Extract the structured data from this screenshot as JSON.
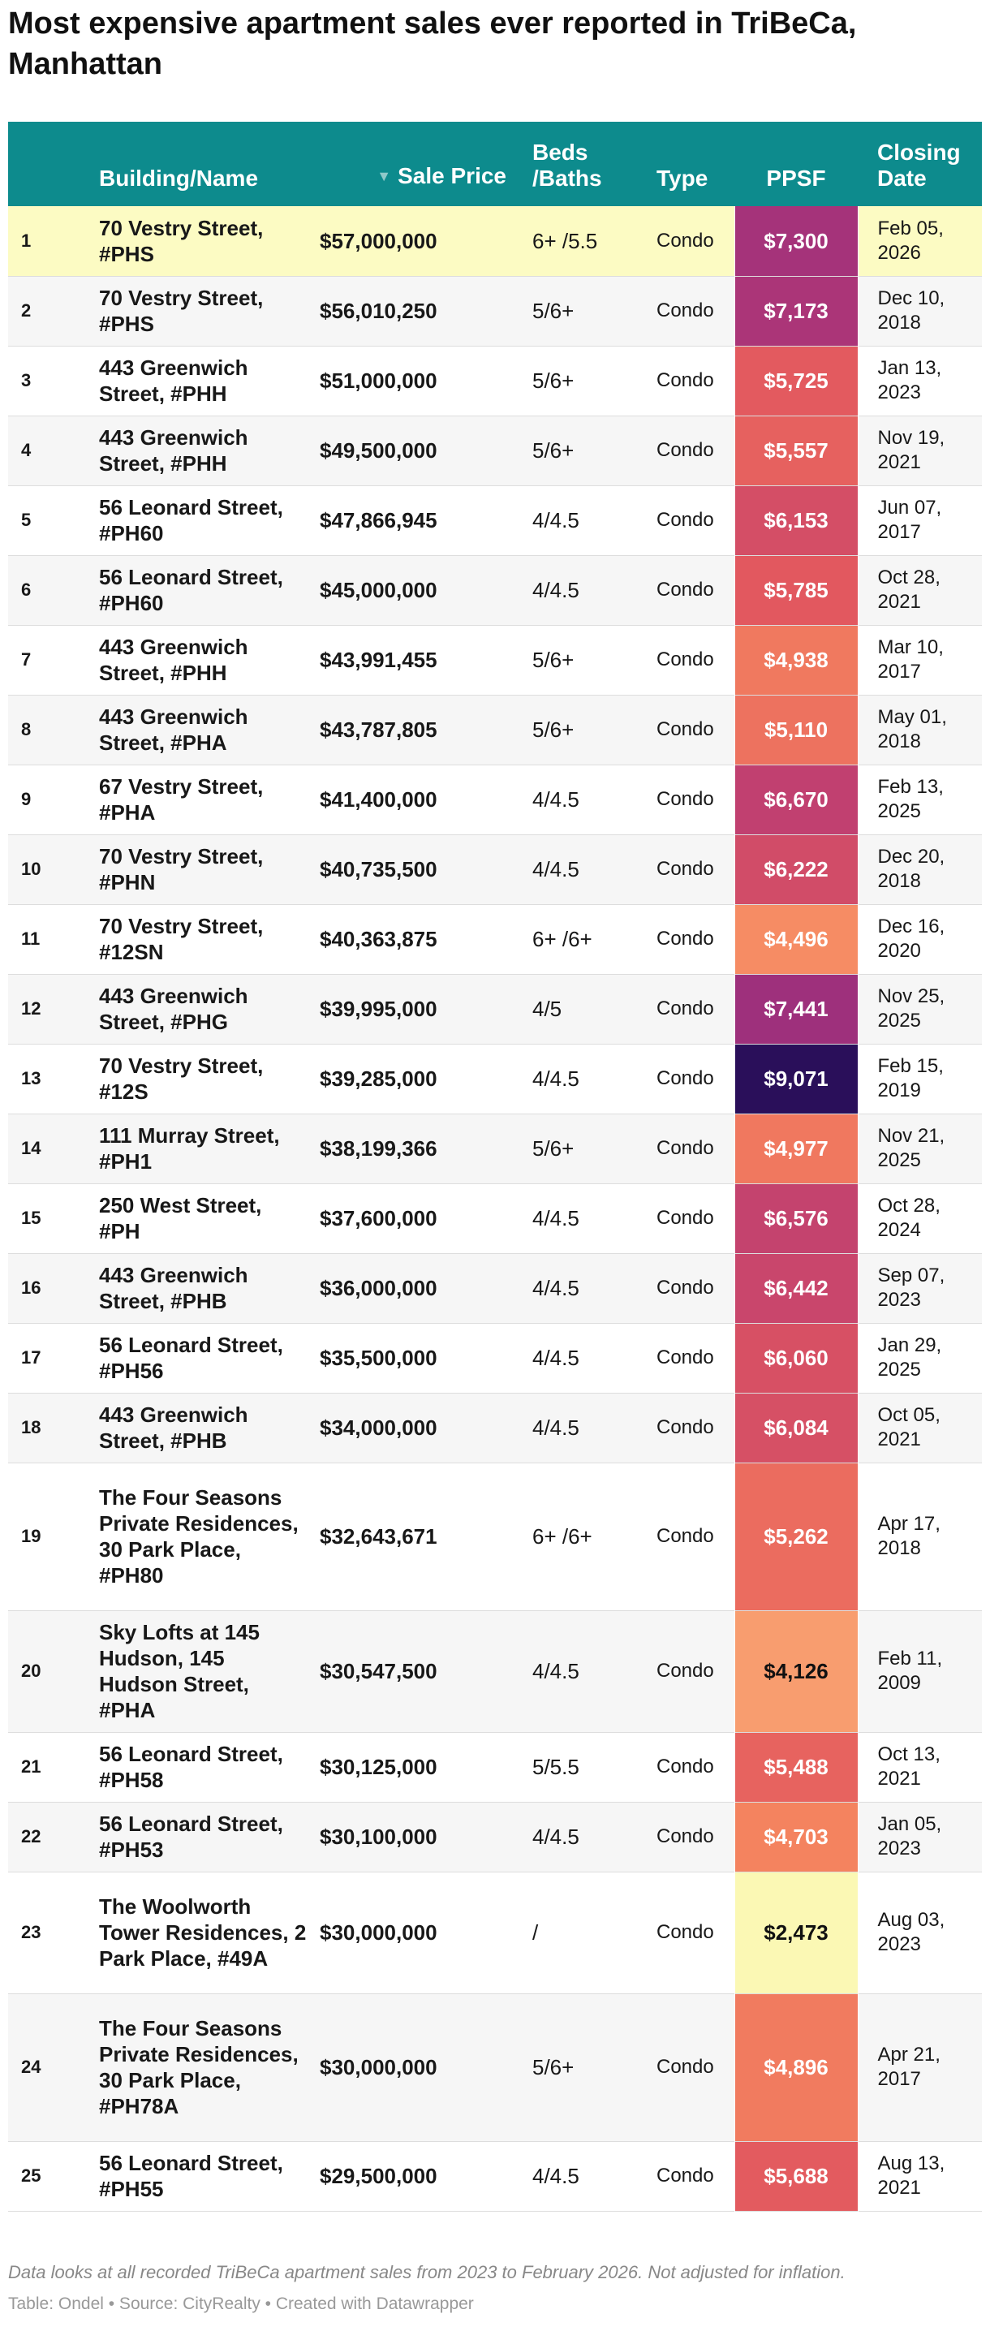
{
  "title": "Most expensive apartment sales ever reported in TriBeCa, Manhattan",
  "chart_data": {
    "type": "table",
    "columns": [
      "",
      "Building/Name",
      "Sale Price",
      "Beds /Baths",
      "Type",
      "PPSF",
      "Closing Date"
    ],
    "sorted_column": "Sale Price",
    "sort_direction": "descending",
    "ppsf_color_scale": {
      "min": 2473,
      "max": 9071
    },
    "rows": [
      {
        "rank": "1",
        "name": "70 Vestry Street, #PHS",
        "price": "$57,000,000",
        "beds": "6+ /5.5",
        "type": "Condo",
        "ppsf": 7300,
        "ppsf_label": "$7,300",
        "date": "Feb 05, 2026",
        "highlight": true
      },
      {
        "rank": "2",
        "name": "70 Vestry Street, #PHS",
        "price": "$56,010,250",
        "beds": "5/6+",
        "type": "Condo",
        "ppsf": 7173,
        "ppsf_label": "$7,173",
        "date": "Dec 10, 2018"
      },
      {
        "rank": "3",
        "name": "443 Greenwich Street, #PHH",
        "price": "$51,000,000",
        "beds": "5/6+",
        "type": "Condo",
        "ppsf": 5725,
        "ppsf_label": "$5,725",
        "date": "Jan 13, 2023"
      },
      {
        "rank": "4",
        "name": "443 Greenwich Street, #PHH",
        "price": "$49,500,000",
        "beds": "5/6+",
        "type": "Condo",
        "ppsf": 5557,
        "ppsf_label": "$5,557",
        "date": "Nov 19, 2021"
      },
      {
        "rank": "5",
        "name": "56 Leonard Street, #PH60",
        "price": "$47,866,945",
        "beds": "4/4.5",
        "type": "Condo",
        "ppsf": 6153,
        "ppsf_label": "$6,153",
        "date": "Jun 07, 2017"
      },
      {
        "rank": "6",
        "name": "56 Leonard Street, #PH60",
        "price": "$45,000,000",
        "beds": "4/4.5",
        "type": "Condo",
        "ppsf": 5785,
        "ppsf_label": "$5,785",
        "date": "Oct 28, 2021"
      },
      {
        "rank": "7",
        "name": "443 Greenwich Street, #PHH",
        "price": "$43,991,455",
        "beds": "5/6+",
        "type": "Condo",
        "ppsf": 4938,
        "ppsf_label": "$4,938",
        "date": "Mar 10, 2017"
      },
      {
        "rank": "8",
        "name": "443 Greenwich Street, #PHA",
        "price": "$43,787,805",
        "beds": "5/6+",
        "type": "Condo",
        "ppsf": 5110,
        "ppsf_label": "$5,110",
        "date": "May 01, 2018"
      },
      {
        "rank": "9",
        "name": "67 Vestry Street, #PHA",
        "price": "$41,400,000",
        "beds": "4/4.5",
        "type": "Condo",
        "ppsf": 6670,
        "ppsf_label": "$6,670",
        "date": "Feb 13, 2025"
      },
      {
        "rank": "10",
        "name": "70 Vestry Street, #PHN",
        "price": "$40,735,500",
        "beds": "4/4.5",
        "type": "Condo",
        "ppsf": 6222,
        "ppsf_label": "$6,222",
        "date": "Dec 20, 2018"
      },
      {
        "rank": "11",
        "name": "70 Vestry Street, #12SN",
        "price": "$40,363,875",
        "beds": "6+ /6+",
        "type": "Condo",
        "ppsf": 4496,
        "ppsf_label": "$4,496",
        "date": "Dec 16, 2020"
      },
      {
        "rank": "12",
        "name": "443 Greenwich Street, #PHG",
        "price": "$39,995,000",
        "beds": "4/5",
        "type": "Condo",
        "ppsf": 7441,
        "ppsf_label": "$7,441",
        "date": "Nov 25, 2025"
      },
      {
        "rank": "13",
        "name": "70 Vestry Street, #12S",
        "price": "$39,285,000",
        "beds": "4/4.5",
        "type": "Condo",
        "ppsf": 9071,
        "ppsf_label": "$9,071",
        "date": "Feb 15, 2019"
      },
      {
        "rank": "14",
        "name": "111 Murray Street, #PH1",
        "price": "$38,199,366",
        "beds": "5/6+",
        "type": "Condo",
        "ppsf": 4977,
        "ppsf_label": "$4,977",
        "date": "Nov 21, 2025"
      },
      {
        "rank": "15",
        "name": "250 West Street, #PH",
        "price": "$37,600,000",
        "beds": "4/4.5",
        "type": "Condo",
        "ppsf": 6576,
        "ppsf_label": "$6,576",
        "date": "Oct 28, 2024"
      },
      {
        "rank": "16",
        "name": "443 Greenwich Street, #PHB",
        "price": "$36,000,000",
        "beds": "4/4.5",
        "type": "Condo",
        "ppsf": 6442,
        "ppsf_label": "$6,442",
        "date": "Sep 07, 2023"
      },
      {
        "rank": "17",
        "name": "56 Leonard Street, #PH56",
        "price": "$35,500,000",
        "beds": "4/4.5",
        "type": "Condo",
        "ppsf": 6060,
        "ppsf_label": "$6,060",
        "date": "Jan 29, 2025"
      },
      {
        "rank": "18",
        "name": "443 Greenwich Street, #PHB",
        "price": "$34,000,000",
        "beds": "4/4.5",
        "type": "Condo",
        "ppsf": 6084,
        "ppsf_label": "$6,084",
        "date": "Oct 05, 2021"
      },
      {
        "rank": "19",
        "name": "The Four Seasons Private Residences, 30 Park Place, #PH80",
        "price": "$32,643,671",
        "beds": "6+ /6+",
        "type": "Condo",
        "ppsf": 5262,
        "ppsf_label": "$5,262",
        "date": "Apr 17, 2018"
      },
      {
        "rank": "20",
        "name": "Sky Lofts at 145 Hudson, 145 Hudson Street, #PHA",
        "price": "$30,547,500",
        "beds": "4/4.5",
        "type": "Condo",
        "ppsf": 4126,
        "ppsf_label": "$4,126",
        "date": "Feb 11, 2009"
      },
      {
        "rank": "21",
        "name": "56 Leonard Street, #PH58",
        "price": "$30,125,000",
        "beds": "5/5.5",
        "type": "Condo",
        "ppsf": 5488,
        "ppsf_label": "$5,488",
        "date": "Oct 13, 2021"
      },
      {
        "rank": "22",
        "name": "56 Leonard Street, #PH53",
        "price": "$30,100,000",
        "beds": "4/4.5",
        "type": "Condo",
        "ppsf": 4703,
        "ppsf_label": "$4,703",
        "date": "Jan 05, 2023"
      },
      {
        "rank": "23",
        "name": "The Woolworth Tower Residences, 2 Park Place, #49A",
        "price": "$30,000,000",
        "beds": "/",
        "type": "Condo",
        "ppsf": 2473,
        "ppsf_label": "$2,473",
        "date": "Aug 03, 2023"
      },
      {
        "rank": "24",
        "name": "The Four Seasons Private Residences, 30 Park Place, #PH78A",
        "price": "$30,000,000",
        "beds": "5/6+",
        "type": "Condo",
        "ppsf": 4896,
        "ppsf_label": "$4,896",
        "date": "Apr 21, 2017"
      },
      {
        "rank": "25",
        "name": "56 Leonard Street, #PH55",
        "price": "$29,500,000",
        "beds": "4/4.5",
        "type": "Condo",
        "ppsf": 5688,
        "ppsf_label": "$5,688",
        "date": "Aug 13, 2021"
      }
    ]
  },
  "header": {
    "rank": "",
    "name": "Building/Name",
    "sort_arrow": "▼",
    "price": "Sale Price",
    "beds": "Beds /Baths",
    "type": "Type",
    "ppsf": "PPSF",
    "date": "Closing Date"
  },
  "notes": "Data looks at all recorded TriBeCa apartment sales from 2023 to February 2026. Not adjusted for inflation.",
  "credits": "Table: Ondel • Source: CityRealty • Created with Datawrapper",
  "colors": {
    "header_bg": "#0d8b8d",
    "highlight_row": "#fcfbc3",
    "stripe_row": "#f6f6f6",
    "scale": [
      "#fbf8b4",
      "#fbb77f",
      "#f5845f",
      "#e2585f",
      "#b93b74",
      "#852684",
      "#2a0f5a"
    ]
  }
}
